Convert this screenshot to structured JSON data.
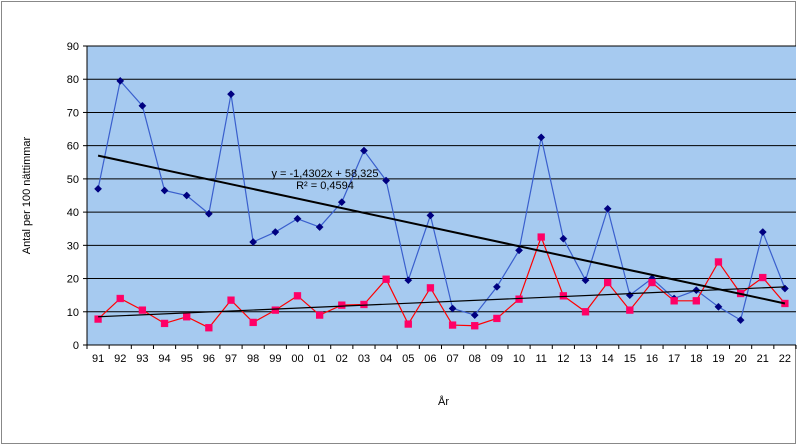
{
  "chart_data": {
    "type": "line",
    "title": "",
    "xlabel": "År",
    "ylabel": "Antal per 100 nättimmar",
    "ylim": [
      0,
      90
    ],
    "yticks": [
      0,
      10,
      20,
      30,
      40,
      50,
      60,
      70,
      80,
      90
    ],
    "categories": [
      "91",
      "92",
      "93",
      "94",
      "95",
      "96",
      "97",
      "98",
      "99",
      "00",
      "01",
      "02",
      "03",
      "04",
      "05",
      "06",
      "07",
      "08",
      "09",
      "10",
      "11",
      "12",
      "13",
      "14",
      "15",
      "16",
      "17",
      "18",
      "19",
      "20",
      "21",
      "22"
    ],
    "grid": "horizontal",
    "legend": "none",
    "series": [
      {
        "color": "#3a5fcd",
        "marker": "diamond",
        "marker_color": "#000080",
        "values": [
          47,
          79.5,
          72,
          46.5,
          45,
          39.5,
          75.5,
          31,
          34,
          38,
          35.5,
          43,
          58.5,
          49.5,
          19.5,
          39,
          11,
          9,
          17.5,
          28.5,
          62.5,
          32,
          19.5,
          41,
          15,
          20,
          14,
          16.5,
          11.5,
          7.5,
          34,
          17
        ]
      },
      {
        "color": "#ff0000",
        "marker": "square",
        "marker_color": "#ff0066",
        "values": [
          7.8,
          14,
          10.5,
          6.5,
          8.5,
          5.2,
          13.5,
          6.8,
          10.5,
          14.8,
          9,
          12,
          12.2,
          19.8,
          6.3,
          17.2,
          6,
          5.8,
          8,
          13.8,
          32.5,
          14.8,
          10,
          18.8,
          10.5,
          18.8,
          13.3,
          13.3,
          25,
          15.5,
          20.3,
          12.5
        ]
      }
    ],
    "trendlines": [
      {
        "series_index": 0,
        "color": "#000000",
        "start": 57.0,
        "end": 12.5,
        "equation": "y = -1,4302x + 58,325",
        "r2": "R² = 0,4594"
      },
      {
        "series_index": 1,
        "color": "#000000",
        "start": 8.5,
        "end": 17.5
      }
    ],
    "colors": {
      "plot_bg": "#a6caf0",
      "grid": "#000000",
      "frame": "#000000"
    }
  }
}
